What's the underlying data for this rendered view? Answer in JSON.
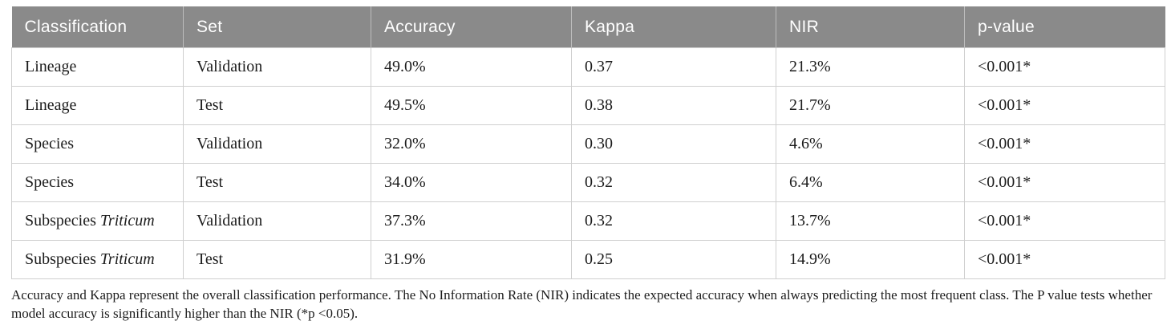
{
  "colors": {
    "header_bg": "#8a8a8a",
    "header_text": "#ffffff",
    "header_divider": "#bdbdbd",
    "row_border": "#cfcfcf",
    "body_text": "#1c1c1c"
  },
  "table": {
    "columns": [
      {
        "label": "Classification"
      },
      {
        "label": "Set"
      },
      {
        "label": "Accuracy"
      },
      {
        "label": "Kappa"
      },
      {
        "label": "NIR"
      },
      {
        "label": "p-value"
      }
    ],
    "rows": [
      {
        "name": "Lineage",
        "name_italic": "",
        "set": "Validation",
        "accuracy": "49.0%",
        "kappa": "0.37",
        "nir": "21.3%",
        "p_value": "<0.001*"
      },
      {
        "name": "Lineage",
        "name_italic": "",
        "set": "Test",
        "accuracy": "49.5%",
        "kappa": "0.38",
        "nir": "21.7%",
        "p_value": "<0.001*"
      },
      {
        "name": "Species",
        "name_italic": "",
        "set": "Validation",
        "accuracy": "32.0%",
        "kappa": "0.30",
        "nir": "4.6%",
        "p_value": "<0.001*"
      },
      {
        "name": "Species",
        "name_italic": "",
        "set": "Test",
        "accuracy": "34.0%",
        "kappa": "0.32",
        "nir": "6.4%",
        "p_value": "<0.001*"
      },
      {
        "name": "Subspecies",
        "name_italic": "Triticum",
        "set": "Validation",
        "accuracy": "37.3%",
        "kappa": "0.32",
        "nir": "13.7%",
        "p_value": "<0.001*"
      },
      {
        "name": "Subspecies",
        "name_italic": "Triticum",
        "set": "Test",
        "accuracy": "31.9%",
        "kappa": "0.25",
        "nir": "14.9%",
        "p_value": "<0.001*"
      }
    ]
  },
  "footnote": "Accuracy and Kappa represent the overall classification performance. The No Information Rate (NIR) indicates the expected accuracy when always predicting the most frequent class. The P value tests whether model accuracy is significantly higher than the NIR (*p <0.05)."
}
